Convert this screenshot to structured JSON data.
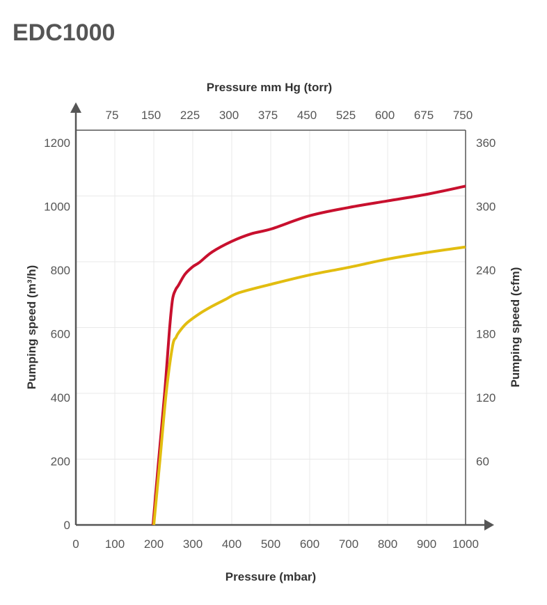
{
  "chart_data": {
    "type": "line",
    "title": "EDC1000",
    "xlabel": "Pressure (mbar)",
    "x2label": "Pressure mm Hg (torr)",
    "ylabel": "Pumping speed (m³/h)",
    "y2label": "Pumping speed (cfm)",
    "xlim": [
      0,
      1000
    ],
    "ylim": [
      0,
      1200
    ],
    "grid": true,
    "x_ticks": [
      "0",
      "100",
      "200",
      "300",
      "400",
      "500",
      "600",
      "700",
      "800",
      "900",
      "1000"
    ],
    "x2_ticks": [
      {
        "at": 100,
        "label": "75"
      },
      {
        "at": 200,
        "label": "150"
      },
      {
        "at": 300,
        "label": "225"
      },
      {
        "at": 400,
        "label": "300"
      },
      {
        "at": 500,
        "label": "375"
      },
      {
        "at": 600,
        "label": "450"
      },
      {
        "at": 700,
        "label": "525"
      },
      {
        "at": 800,
        "label": "600"
      },
      {
        "at": 900,
        "label": "675"
      },
      {
        "at": 1000,
        "label": "750"
      }
    ],
    "y_ticks": [
      "0",
      "200",
      "400",
      "600",
      "800",
      "1000",
      "1200"
    ],
    "y2_ticks": [
      {
        "at": 200,
        "label": "60"
      },
      {
        "at": 400,
        "label": "120"
      },
      {
        "at": 600,
        "label": "180"
      },
      {
        "at": 800,
        "label": "240"
      },
      {
        "at": 1000,
        "label": "300"
      },
      {
        "at": 1200,
        "label": "360"
      }
    ],
    "series": [
      {
        "name": "red curve",
        "color": "#C8102E",
        "x": [
          198,
          212,
          228,
          240,
          248,
          256,
          263,
          280,
          300,
          317,
          350,
          400,
          450,
          502,
          600,
          700,
          800,
          900,
          1000
        ],
        "y": [
          0,
          191,
          403,
          590,
          685,
          715,
          728,
          762,
          785,
          798,
          830,
          862,
          885,
          900,
          940,
          965,
          985,
          1005,
          1030
        ]
      },
      {
        "name": "yellow curve",
        "color": "#E2BD10",
        "x": [
          200,
          216,
          232,
          248,
          257,
          264,
          284,
          317,
          350,
          383,
          419,
          502,
          600,
          700,
          800,
          900,
          1000
        ],
        "y": [
          0,
          200,
          403,
          543,
          570,
          585,
          613,
          642,
          665,
          685,
          706,
          732,
          760,
          783,
          808,
          828,
          845
        ]
      }
    ]
  }
}
